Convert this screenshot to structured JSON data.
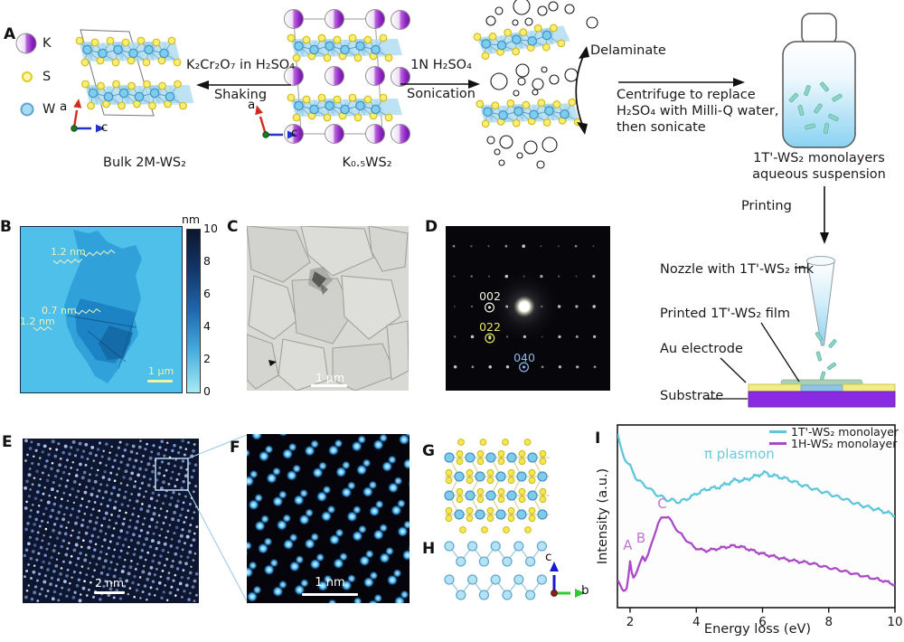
{
  "panels": {
    "A": "A",
    "B": "B",
    "C": "C",
    "D": "D",
    "E": "E",
    "F": "F",
    "G": "G",
    "H": "H",
    "I": "I"
  },
  "panelA": {
    "legend": [
      {
        "label": "K"
      },
      {
        "label": "S"
      },
      {
        "label": "W"
      }
    ],
    "bulk_caption": "Bulk 2M-WS₂",
    "k05_caption": "K₀.₅WS₂",
    "arrow1": {
      "top": "K₂Cr₂O₇ in H₂SO₄",
      "bottom": "Shaking"
    },
    "arrow2": {
      "top": "1N H₂SO₄",
      "bottom": "Sonication"
    },
    "delaminate": "Delaminate",
    "centrifuge": [
      "Centrifuge to replace",
      "H₂SO₄ with Milli-Q water,",
      "then sonicate"
    ],
    "bottle_caption": [
      "1T'-WS₂ monolayers",
      "aqueous suspension"
    ],
    "printing": "Printing",
    "labels": {
      "nozzle": "Nozzle with 1T'-WS₂ ink",
      "film": "Printed 1T'-WS₂ film",
      "electrode": "Au electrode",
      "substrate": "Substrate"
    },
    "axes": {
      "a": "a",
      "c": "c",
      "b": "b"
    }
  },
  "panelB": {
    "colorbar": {
      "unit": "nm",
      "ticks": [
        "10",
        "8",
        "6",
        "4",
        "2",
        "0"
      ]
    },
    "annotations": [
      "1.2 nm",
      "0.7 nm",
      "1.2 nm"
    ],
    "scalebar": "1 μm"
  },
  "panelC": {
    "scalebar": "1 μm"
  },
  "panelD": {
    "spots": [
      {
        "label": "002",
        "color": "#f0f0e6"
      },
      {
        "label": "022",
        "color": "#e8e468"
      },
      {
        "label": "040",
        "color": "#8ab6ea"
      }
    ]
  },
  "panelE": {
    "scalebar": "2 nm"
  },
  "panelF": {
    "scalebar": "1 nm"
  },
  "colors": {
    "cyan_series": "#5ec7da",
    "magenta_series": "#ab4ac6",
    "afm_background": "#4fc0ea",
    "substrate": "#8a2be2",
    "au_electrode": "#f2ed82",
    "printed_film": "#8fc6e8"
  },
  "chart_data": {
    "type": "line",
    "xlabel": "Energy loss (eV)",
    "ylabel": "Intensity (a.u.)",
    "xlim": [
      1.62,
      10
    ],
    "xticks": [
      2,
      4,
      6,
      8,
      10
    ],
    "grid": false,
    "legend_position": "top-right",
    "series": [
      {
        "name": "1T'-WS₂ monolayer",
        "color": "#5ec7da",
        "points": [
          [
            1.62,
            0.95
          ],
          [
            1.7,
            0.885
          ],
          [
            1.8,
            0.83
          ],
          [
            1.9,
            0.8
          ],
          [
            2.0,
            0.775
          ],
          [
            2.1,
            0.735
          ],
          [
            2.2,
            0.705
          ],
          [
            2.3,
            0.69
          ],
          [
            2.4,
            0.675
          ],
          [
            2.5,
            0.663
          ],
          [
            2.6,
            0.648
          ],
          [
            2.7,
            0.635
          ],
          [
            2.8,
            0.62
          ],
          [
            2.9,
            0.61
          ],
          [
            3.0,
            0.603
          ],
          [
            3.1,
            0.592
          ],
          [
            3.2,
            0.586
          ],
          [
            3.3,
            0.59
          ],
          [
            3.4,
            0.582
          ],
          [
            3.5,
            0.576
          ],
          [
            3.6,
            0.588
          ],
          [
            3.7,
            0.595
          ],
          [
            3.8,
            0.602
          ],
          [
            3.9,
            0.612
          ],
          [
            4.0,
            0.625
          ],
          [
            4.2,
            0.64
          ],
          [
            4.4,
            0.653
          ],
          [
            4.6,
            0.656
          ],
          [
            4.8,
            0.668
          ],
          [
            5.0,
            0.684
          ],
          [
            5.2,
            0.7
          ],
          [
            5.4,
            0.695
          ],
          [
            5.6,
            0.708
          ],
          [
            5.8,
            0.72
          ],
          [
            6.0,
            0.735
          ],
          [
            6.1,
            0.738
          ],
          [
            6.2,
            0.727
          ],
          [
            6.4,
            0.72
          ],
          [
            6.6,
            0.712
          ],
          [
            6.8,
            0.7
          ],
          [
            7.0,
            0.686
          ],
          [
            7.2,
            0.67
          ],
          [
            7.4,
            0.66
          ],
          [
            7.6,
            0.646
          ],
          [
            7.8,
            0.635
          ],
          [
            8.0,
            0.625
          ],
          [
            8.2,
            0.61
          ],
          [
            8.4,
            0.6
          ],
          [
            8.6,
            0.586
          ],
          [
            8.8,
            0.571
          ],
          [
            9.0,
            0.56
          ],
          [
            9.2,
            0.55
          ],
          [
            9.4,
            0.54
          ],
          [
            9.6,
            0.53
          ],
          [
            9.8,
            0.518
          ],
          [
            10.0,
            0.505
          ]
        ]
      },
      {
        "name": "1H-WS₂ monolayer",
        "color": "#ab4ac6",
        "points": [
          [
            1.62,
            0.145
          ],
          [
            1.7,
            0.12
          ],
          [
            1.8,
            0.096
          ],
          [
            1.9,
            0.105
          ],
          [
            1.95,
            0.17
          ],
          [
            2.0,
            0.248
          ],
          [
            2.05,
            0.195
          ],
          [
            2.1,
            0.168
          ],
          [
            2.2,
            0.195
          ],
          [
            2.3,
            0.24
          ],
          [
            2.38,
            0.285
          ],
          [
            2.45,
            0.262
          ],
          [
            2.55,
            0.29
          ],
          [
            2.65,
            0.35
          ],
          [
            2.75,
            0.41
          ],
          [
            2.85,
            0.46
          ],
          [
            2.95,
            0.49
          ],
          [
            3.05,
            0.5
          ],
          [
            3.15,
            0.495
          ],
          [
            3.25,
            0.47
          ],
          [
            3.35,
            0.445
          ],
          [
            3.45,
            0.415
          ],
          [
            3.55,
            0.4
          ],
          [
            3.65,
            0.38
          ],
          [
            3.75,
            0.36
          ],
          [
            3.85,
            0.345
          ],
          [
            3.95,
            0.33
          ],
          [
            4.1,
            0.318
          ],
          [
            4.3,
            0.312
          ],
          [
            4.5,
            0.318
          ],
          [
            4.7,
            0.325
          ],
          [
            4.9,
            0.332
          ],
          [
            5.1,
            0.338
          ],
          [
            5.3,
            0.335
          ],
          [
            5.5,
            0.325
          ],
          [
            5.7,
            0.312
          ],
          [
            5.9,
            0.3
          ],
          [
            6.1,
            0.29
          ],
          [
            6.3,
            0.282
          ],
          [
            6.5,
            0.273
          ],
          [
            6.7,
            0.265
          ],
          [
            6.9,
            0.258
          ],
          [
            7.1,
            0.252
          ],
          [
            7.3,
            0.248
          ],
          [
            7.5,
            0.242
          ],
          [
            7.7,
            0.232
          ],
          [
            7.9,
            0.222
          ],
          [
            8.1,
            0.215
          ],
          [
            8.3,
            0.207
          ],
          [
            8.5,
            0.198
          ],
          [
            8.7,
            0.188
          ],
          [
            9.0,
            0.175
          ],
          [
            9.3,
            0.162
          ],
          [
            9.6,
            0.15
          ],
          [
            9.8,
            0.138
          ],
          [
            10.0,
            0.126
          ]
        ]
      }
    ],
    "annotations": [
      {
        "text": "A",
        "x": 1.93,
        "y": 0.3,
        "color": "#c277d0"
      },
      {
        "text": "B",
        "x": 2.33,
        "y": 0.34,
        "color": "#c277d0"
      },
      {
        "text": "C",
        "x": 2.97,
        "y": 0.53,
        "color": "#c277d0"
      },
      {
        "text": "π plasmon",
        "x": 5.3,
        "y": 0.8,
        "color": "#6fc9da"
      }
    ]
  }
}
